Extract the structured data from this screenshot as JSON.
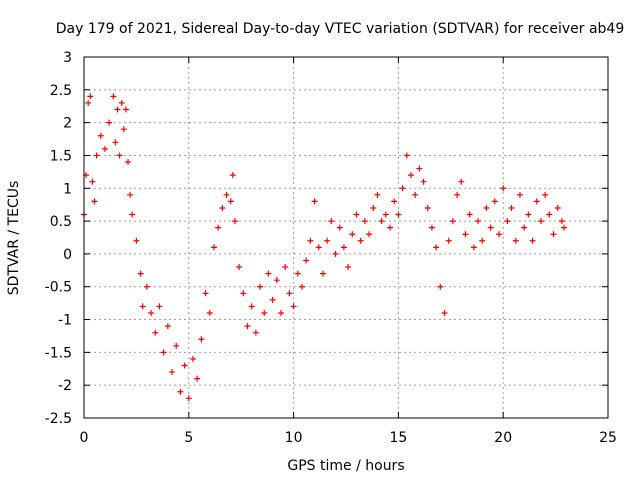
{
  "chart_data": {
    "type": "scatter",
    "title": "Day 179 of 2021, Sidereal Day-to-day VTEC variation (SDTVAR) for receiver ab49",
    "xlabel": "GPS time / hours",
    "ylabel": "SDTVAR / TECUs",
    "xlim": [
      0,
      25
    ],
    "ylim": [
      -2.5,
      3
    ],
    "xticks": [
      "0",
      "5",
      "10",
      "15",
      "20",
      "25"
    ],
    "yticks": [
      "-2.5",
      "-2",
      "-1.5",
      "-1",
      "-0.5",
      "0",
      "0.5",
      "1",
      "1.5",
      "2",
      "2.5",
      "3"
    ],
    "grid": true,
    "marker": "+",
    "series": [
      {
        "name": "SDTVAR",
        "color": "#ff0000",
        "x": [
          0.0,
          0.1,
          0.2,
          0.3,
          0.4,
          0.5,
          0.6,
          0.8,
          1.0,
          1.2,
          1.4,
          1.5,
          1.6,
          1.7,
          1.8,
          1.9,
          2.0,
          2.1,
          2.2,
          2.3,
          2.5,
          2.7,
          2.8,
          3.0,
          3.2,
          3.4,
          3.6,
          3.8,
          4.0,
          4.2,
          4.4,
          4.6,
          4.8,
          5.0,
          5.2,
          5.4,
          5.6,
          5.8,
          6.0,
          6.2,
          6.4,
          6.6,
          6.8,
          7.0,
          7.1,
          7.2,
          7.4,
          7.6,
          7.8,
          8.0,
          8.2,
          8.4,
          8.6,
          8.8,
          9.0,
          9.2,
          9.4,
          9.6,
          9.8,
          10.0,
          10.2,
          10.4,
          10.6,
          10.8,
          11.0,
          11.2,
          11.4,
          11.6,
          11.8,
          12.0,
          12.2,
          12.4,
          12.6,
          12.8,
          13.0,
          13.2,
          13.4,
          13.6,
          13.8,
          14.0,
          14.2,
          14.4,
          14.6,
          14.8,
          15.0,
          15.2,
          15.4,
          15.6,
          15.8,
          16.0,
          16.2,
          16.4,
          16.6,
          16.8,
          17.0,
          17.2,
          17.4,
          17.6,
          17.8,
          18.0,
          18.2,
          18.4,
          18.6,
          18.8,
          19.0,
          19.2,
          19.4,
          19.6,
          19.8,
          20.0,
          20.2,
          20.4,
          20.6,
          20.8,
          21.0,
          21.2,
          21.4,
          21.6,
          21.8,
          22.0,
          22.2,
          22.4,
          22.6,
          22.8,
          22.9
        ],
        "y": [
          0.6,
          1.2,
          2.3,
          2.4,
          1.1,
          0.8,
          1.5,
          1.8,
          1.6,
          2.0,
          2.4,
          1.7,
          2.2,
          1.5,
          2.3,
          1.9,
          2.2,
          1.4,
          0.9,
          0.6,
          0.2,
          -0.3,
          -0.8,
          -0.5,
          -0.9,
          -1.2,
          -0.8,
          -1.5,
          -1.1,
          -1.8,
          -1.4,
          -2.1,
          -1.7,
          -2.2,
          -1.6,
          -1.9,
          -1.3,
          -0.6,
          -0.9,
          0.1,
          0.4,
          0.7,
          0.9,
          0.8,
          1.2,
          0.5,
          -0.2,
          -0.6,
          -1.1,
          -0.8,
          -1.2,
          -0.5,
          -0.9,
          -0.3,
          -0.7,
          -0.4,
          -0.9,
          -0.2,
          -0.6,
          -0.8,
          -0.3,
          -0.5,
          -0.1,
          0.2,
          0.8,
          0.1,
          -0.3,
          0.2,
          0.5,
          0.0,
          0.4,
          0.1,
          -0.2,
          0.3,
          0.6,
          0.2,
          0.5,
          0.3,
          0.7,
          0.9,
          0.5,
          0.6,
          0.4,
          0.8,
          0.6,
          1.0,
          1.5,
          1.2,
          0.9,
          1.3,
          1.1,
          0.7,
          0.4,
          0.1,
          -0.5,
          -0.9,
          0.2,
          0.5,
          0.9,
          1.1,
          0.3,
          0.6,
          0.1,
          0.5,
          0.2,
          0.7,
          0.4,
          0.8,
          0.3,
          1.0,
          0.5,
          0.7,
          0.2,
          0.9,
          0.4,
          0.6,
          0.2,
          0.8,
          0.5,
          0.9,
          0.6,
          0.3,
          0.7,
          0.5,
          0.4
        ]
      }
    ]
  }
}
